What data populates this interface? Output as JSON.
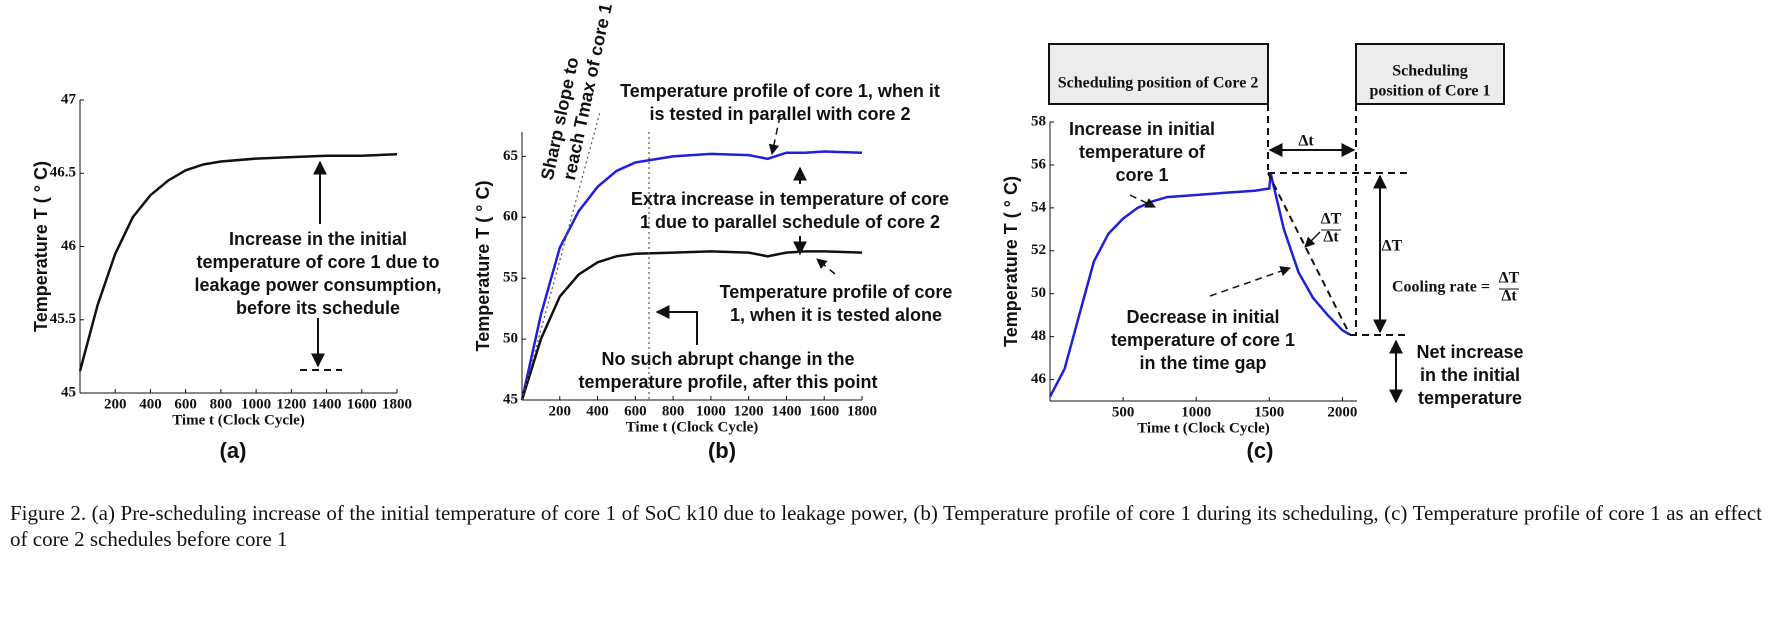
{
  "chart_data": [
    {
      "type": "line",
      "panel_label": "(a)",
      "ylabel": "Temperature T ( ° C)",
      "xlabel": "Time t (Clock Cycle)",
      "xlim": [
        0,
        1800
      ],
      "ylim": [
        45,
        47
      ],
      "xticks": [
        200,
        400,
        600,
        800,
        1000,
        1200,
        1400,
        1600,
        1800
      ],
      "yticks": [
        45,
        45.5,
        46,
        46.5,
        47
      ],
      "x": [
        0,
        100,
        200,
        300,
        400,
        500,
        600,
        700,
        800,
        1000,
        1200,
        1400,
        1600,
        1800
      ],
      "series": [
        {
          "color": "#111111",
          "values": [
            45.15,
            45.6,
            45.95,
            46.2,
            46.35,
            46.45,
            46.52,
            46.56,
            46.58,
            46.6,
            46.61,
            46.62,
            46.62,
            46.63
          ]
        }
      ],
      "annotations": [
        {
          "lines": [
            "Increase in the initial",
            "temperature of core 1 due to",
            "leakage power consumption,",
            "before its schedule"
          ]
        }
      ]
    },
    {
      "type": "line",
      "panel_label": "(b)",
      "ylabel": "Temperature T ( ° C)",
      "xlabel": "Time t (Clock Cycle)",
      "xlim": [
        0,
        1800
      ],
      "ylim": [
        45,
        67
      ],
      "xticks": [
        200,
        400,
        600,
        800,
        1000,
        1200,
        1400,
        1600,
        1800
      ],
      "yticks": [
        45,
        50,
        55,
        60,
        65
      ],
      "x": [
        0,
        100,
        200,
        300,
        400,
        500,
        600,
        800,
        1000,
        1200,
        1300,
        1400,
        1500,
        1600,
        1800
      ],
      "series": [
        {
          "color": "#1f1fe0",
          "values": [
            45,
            52,
            57.5,
            60.5,
            62.5,
            63.8,
            64.5,
            65,
            65.2,
            65.1,
            64.8,
            65.3,
            65.3,
            65.4,
            65.3
          ]
        },
        {
          "color": "#111111",
          "values": [
            45,
            50,
            53.5,
            55.3,
            56.3,
            56.8,
            57,
            57.1,
            57.2,
            57.1,
            56.8,
            57.1,
            57.2,
            57.2,
            57.1
          ]
        }
      ],
      "annotations": [
        {
          "lines": [
            "Temperature profile of core 1, when it",
            "is tested in parallel with core 2"
          ]
        },
        {
          "lines": [
            "Extra increase in temperature of core",
            "1 due to parallel schedule of core 2"
          ]
        },
        {
          "lines": [
            "Temperature profile of core",
            "1, when it is tested alone"
          ]
        },
        {
          "lines": [
            "No such abrupt change in the",
            "temperature profile, after this point"
          ]
        },
        {
          "lines": [
            "Sharp slope to",
            "reach Tmax of core 1"
          ]
        }
      ]
    },
    {
      "type": "line",
      "panel_label": "(c)",
      "ylabel": "Temperature T ( ° C)",
      "xlabel": "Time t (Clock Cycle)",
      "xlim": [
        0,
        2100
      ],
      "ylim": [
        45,
        58
      ],
      "xticks": [
        500,
        1000,
        1500,
        2000
      ],
      "yticks": [
        46,
        48,
        50,
        52,
        54,
        56,
        58
      ],
      "x": [
        0,
        100,
        200,
        300,
        400,
        500,
        600,
        700,
        800,
        1000,
        1200,
        1400,
        1500,
        1510,
        1600,
        1700,
        1800,
        1900,
        2000,
        2050
      ],
      "series": [
        {
          "color": "#1f1fe0",
          "values": [
            45.2,
            46.5,
            49,
            51.5,
            52.8,
            53.5,
            54,
            54.3,
            54.5,
            54.6,
            54.7,
            54.8,
            54.9,
            55.6,
            53,
            51,
            49.8,
            49,
            48.3,
            48.1
          ]
        }
      ],
      "annotations": [
        {
          "lines": [
            "Scheduling position of Core 2"
          ]
        },
        {
          "lines": [
            "Scheduling",
            "position of Core 1"
          ]
        },
        {
          "lines": [
            "Increase in initial",
            "temperature of",
            "core 1"
          ]
        },
        {
          "lines": [
            "Decrease in initial",
            "temperature of core 1",
            "in the time gap"
          ]
        },
        {
          "lines": [
            "Net increase",
            "in the initial",
            "temperature"
          ]
        },
        {
          "lines": [
            "Δt"
          ]
        },
        {
          "lines": [
            "ΔT"
          ]
        },
        {
          "lines": [
            "Cooling rate ="
          ]
        },
        {
          "lines": [
            "ΔT",
            "Δt"
          ]
        },
        {
          "lines": [
            "ΔT",
            "Δt"
          ]
        }
      ]
    }
  ],
  "caption": "Figure 2.    (a) Pre-scheduling increase of the initial temperature of core 1 of SoC k10 due to leakage power, (b) Temperature profile of core 1 during its scheduling, (c) Temperature profile of core 1 as an effect of core 2 schedules before core 1"
}
